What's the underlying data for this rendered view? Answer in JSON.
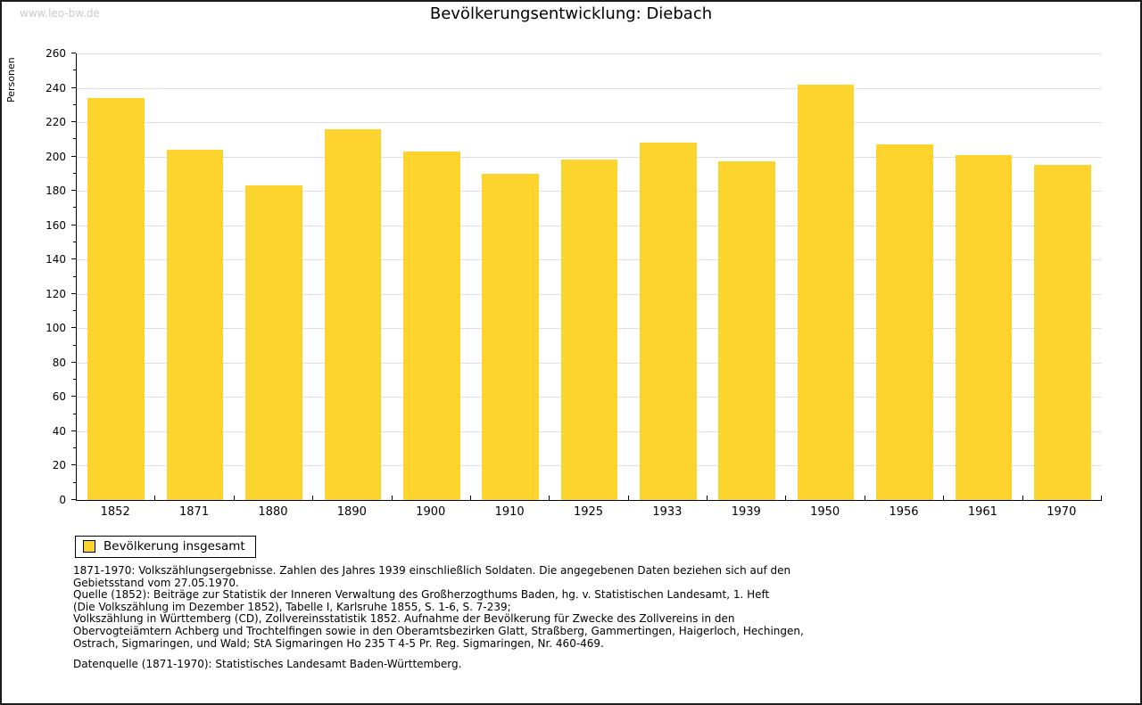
{
  "watermark": "www.leo-bw.de",
  "title": "Bevölkerungsentwicklung: Diebach",
  "chart_data": {
    "type": "bar",
    "title": "Bevölkerungsentwicklung: Diebach",
    "xlabel": "",
    "ylabel": "Personen",
    "ylim": [
      0,
      260
    ],
    "ytick_major": 20,
    "ytick_minor": 10,
    "grid": true,
    "legend_position": "bottom-left",
    "categories": [
      "1852",
      "1871",
      "1880",
      "1890",
      "1900",
      "1910",
      "1925",
      "1933",
      "1939",
      "1950",
      "1956",
      "1961",
      "1970"
    ],
    "series": [
      {
        "name": "Bevölkerung insgesamt",
        "color": "#FCD42D",
        "values": [
          234,
          204,
          183,
          216,
          203,
          190,
          198,
          208,
          197,
          242,
          207,
          201,
          195
        ]
      }
    ]
  },
  "legend": {
    "label": "Bevölkerung insgesamt",
    "swatch_color": "#FCD42D"
  },
  "notes": {
    "lines": [
      "1871-1970: Volkszählungsergebnisse. Zahlen des Jahres 1939 einschließlich Soldaten. Die angegebenen Daten beziehen sich auf den",
      "Gebietsstand vom 27.05.1970.",
      "Quelle (1852): Beiträge zur Statistik der Inneren Verwaltung des Großherzogthums Baden, hg. v. Statistischen Landesamt, 1. Heft",
      "(Die Volkszählung im Dezember 1852), Tabelle I, Karlsruhe 1855, S. 1-6, S. 7-239;",
      "Volkszählung in Württemberg (CD), Zollvereinsstatistik 1852. Aufnahme der Bevölkerung für Zwecke des Zollvereins in den",
      "Obervogteiämtern Achberg und Trochtelfingen sowie in den Oberamtsbezirken Glatt, Straßberg, Gammertingen, Haigerloch, Hechingen,",
      "Ostrach, Sigmaringen, und Wald; StA Sigmaringen Ho 235 T 4-5 Pr. Reg. Sigmaringen, Nr. 460-469."
    ],
    "datasource": "Datenquelle (1871-1970): Statistisches Landesamt Baden-Württemberg."
  },
  "colors": {
    "bar": "#FCD42D",
    "grid": "#DEDEDE",
    "watermark": "#C9C9C9"
  }
}
